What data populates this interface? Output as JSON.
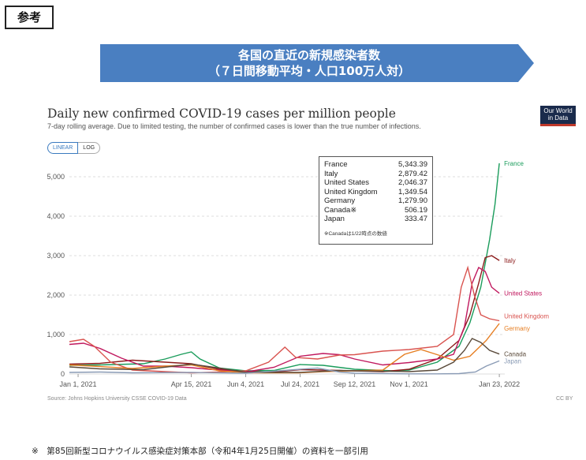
{
  "header": {
    "tag": "参考",
    "banner_line1": "各国の直近の新規感染者数",
    "banner_line2": "（７日間移動平均・人口100万人対）",
    "banner_color": "#4a7fc1"
  },
  "chart_data": {
    "type": "line",
    "title": "Daily new confirmed COVID-19 cases per million people",
    "subtitle": "7-day rolling average. Due to limited testing, the number of confirmed cases is lower than the true number of infections.",
    "scale_tabs": [
      "LINEAR",
      "LOG"
    ],
    "active_scale": "LINEAR",
    "logo_line1": "Our World",
    "logo_line2": "in Data",
    "ylim": [
      0,
      5500
    ],
    "yticks": [
      "0",
      "1,000",
      "2,000",
      "3,000",
      "4,000",
      "5,000"
    ],
    "x_tick_labels": [
      "Jan 1, 2021",
      "Apr 15, 2021",
      "Jun 4, 2021",
      "Jul 24, 2021",
      "Sep 12, 2021",
      "Nov 1, 2021",
      "Jan 23, 2022"
    ],
    "x_tick_days": [
      0,
      104,
      154,
      204,
      254,
      304,
      387
    ],
    "xlim_days": [
      -8,
      392
    ],
    "source": "Source: Johns Hopkins University CSSE COVID-19 Data",
    "license": "CC BY",
    "series": [
      {
        "name": "France",
        "color": "#1a9c5b",
        "points": [
          [
            -8,
            220
          ],
          [
            20,
            230
          ],
          [
            60,
            260
          ],
          [
            80,
            380
          ],
          [
            95,
            500
          ],
          [
            104,
            560
          ],
          [
            112,
            380
          ],
          [
            130,
            150
          ],
          [
            154,
            80
          ],
          [
            180,
            90
          ],
          [
            204,
            240
          ],
          [
            225,
            220
          ],
          [
            254,
            120
          ],
          [
            290,
            80
          ],
          [
            304,
            100
          ],
          [
            330,
            300
          ],
          [
            350,
            700
          ],
          [
            360,
            1300
          ],
          [
            370,
            2200
          ],
          [
            378,
            3400
          ],
          [
            383,
            4300
          ],
          [
            387,
            5343
          ]
        ]
      },
      {
        "name": "Italy",
        "color": "#8b1a1a",
        "points": [
          [
            -8,
            250
          ],
          [
            20,
            270
          ],
          [
            50,
            350
          ],
          [
            80,
            300
          ],
          [
            104,
            260
          ],
          [
            130,
            120
          ],
          [
            154,
            60
          ],
          [
            180,
            50
          ],
          [
            204,
            110
          ],
          [
            225,
            100
          ],
          [
            254,
            80
          ],
          [
            280,
            60
          ],
          [
            304,
            120
          ],
          [
            330,
            380
          ],
          [
            350,
            850
          ],
          [
            360,
            1500
          ],
          [
            368,
            2300
          ],
          [
            374,
            2950
          ],
          [
            380,
            3000
          ],
          [
            387,
            2879
          ]
        ]
      },
      {
        "name": "United States",
        "color": "#c0185e",
        "points": [
          [
            -8,
            750
          ],
          [
            5,
            780
          ],
          [
            20,
            650
          ],
          [
            40,
            400
          ],
          [
            60,
            200
          ],
          [
            80,
            200
          ],
          [
            104,
            160
          ],
          [
            120,
            120
          ],
          [
            154,
            50
          ],
          [
            180,
            170
          ],
          [
            204,
            450
          ],
          [
            225,
            520
          ],
          [
            240,
            490
          ],
          [
            254,
            380
          ],
          [
            280,
            230
          ],
          [
            304,
            290
          ],
          [
            330,
            380
          ],
          [
            345,
            500
          ],
          [
            355,
            1200
          ],
          [
            362,
            2300
          ],
          [
            368,
            2700
          ],
          [
            374,
            2600
          ],
          [
            380,
            2200
          ],
          [
            387,
            2046
          ]
        ]
      },
      {
        "name": "United Kingdom",
        "color": "#d9534f",
        "points": [
          [
            -8,
            820
          ],
          [
            5,
            880
          ],
          [
            15,
            700
          ],
          [
            30,
            300
          ],
          [
            50,
            100
          ],
          [
            80,
            60
          ],
          [
            104,
            30
          ],
          [
            130,
            50
          ],
          [
            154,
            80
          ],
          [
            175,
            300
          ],
          [
            190,
            680
          ],
          [
            200,
            420
          ],
          [
            220,
            380
          ],
          [
            240,
            480
          ],
          [
            254,
            490
          ],
          [
            280,
            580
          ],
          [
            304,
            620
          ],
          [
            330,
            700
          ],
          [
            345,
            1000
          ],
          [
            352,
            2200
          ],
          [
            358,
            2700
          ],
          [
            364,
            2000
          ],
          [
            370,
            1500
          ],
          [
            378,
            1400
          ],
          [
            387,
            1350
          ]
        ]
      },
      {
        "name": "Germany",
        "color": "#e67e22",
        "points": [
          [
            -8,
            230
          ],
          [
            20,
            190
          ],
          [
            50,
            140
          ],
          [
            80,
            200
          ],
          [
            104,
            230
          ],
          [
            130,
            80
          ],
          [
            154,
            30
          ],
          [
            204,
            30
          ],
          [
            225,
            60
          ],
          [
            254,
            80
          ],
          [
            280,
            100
          ],
          [
            300,
            500
          ],
          [
            315,
            620
          ],
          [
            330,
            490
          ],
          [
            345,
            350
          ],
          [
            360,
            450
          ],
          [
            375,
            850
          ],
          [
            387,
            1280
          ]
        ]
      },
      {
        "name": "Canada",
        "color": "#5a4a3a",
        "points": [
          [
            -8,
            180
          ],
          [
            20,
            130
          ],
          [
            60,
            110
          ],
          [
            104,
            250
          ],
          [
            130,
            150
          ],
          [
            154,
            40
          ],
          [
            204,
            40
          ],
          [
            240,
            90
          ],
          [
            254,
            80
          ],
          [
            304,
            60
          ],
          [
            330,
            100
          ],
          [
            345,
            300
          ],
          [
            355,
            600
          ],
          [
            362,
            900
          ],
          [
            370,
            800
          ],
          [
            378,
            600
          ],
          [
            387,
            506
          ]
        ]
      },
      {
        "name": "Japan",
        "color": "#8a9bb5",
        "points": [
          [
            -8,
            40
          ],
          [
            20,
            50
          ],
          [
            50,
            30
          ],
          [
            104,
            40
          ],
          [
            130,
            30
          ],
          [
            154,
            20
          ],
          [
            204,
            120
          ],
          [
            220,
            150
          ],
          [
            240,
            50
          ],
          [
            254,
            20
          ],
          [
            304,
            5
          ],
          [
            330,
            5
          ],
          [
            350,
            10
          ],
          [
            365,
            50
          ],
          [
            375,
            200
          ],
          [
            387,
            333
          ]
        ]
      }
    ],
    "legend_values": [
      {
        "name": "France",
        "value": "5,343.39"
      },
      {
        "name": "Italy",
        "value": "2,879.42"
      },
      {
        "name": "United States",
        "value": "2,046.37"
      },
      {
        "name": "United Kingdom",
        "value": "1,349.54"
      },
      {
        "name": "Germany",
        "value": "1,279.90"
      },
      {
        "name": "Canada※",
        "value": "506.19"
      },
      {
        "name": "Japan",
        "value": "333.47"
      }
    ],
    "legend_note": "※Canadaは1/22時点の数値"
  },
  "footnote": "※　第85回新型コロナウイルス感染症対策本部（令和4年1月25日開催）の資料を一部引用"
}
